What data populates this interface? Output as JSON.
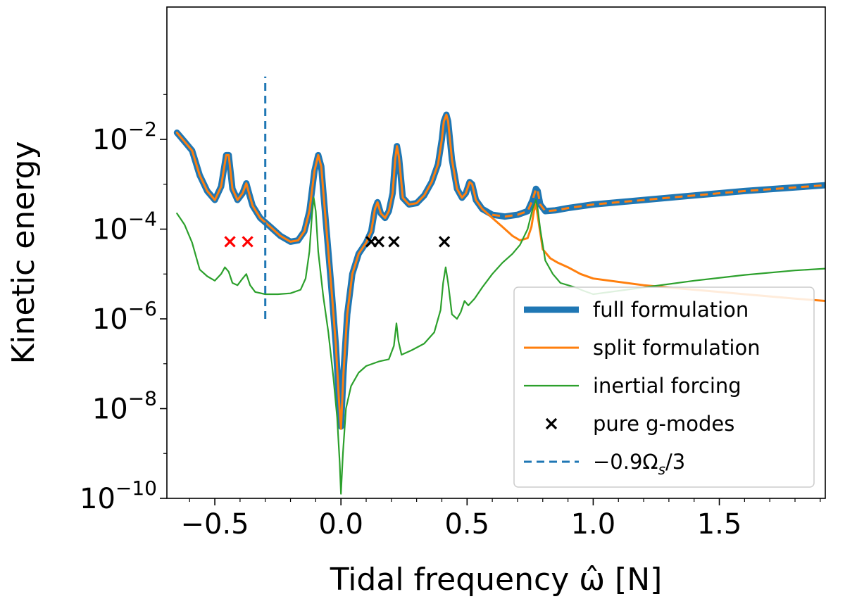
{
  "chart_data": {
    "type": "line",
    "xlabel": "Tidal frequency ω̂ [N]",
    "ylabel": "Kinetic energy",
    "xscale": "linear",
    "yscale": "log",
    "xlim": [
      -0.69,
      1.92
    ],
    "ylim_log10": [
      -10,
      0.95
    ],
    "x_ticks": [
      {
        "value": -0.5,
        "label": "−0.5"
      },
      {
        "value": 0.0,
        "label": "0.0"
      },
      {
        "value": 0.5,
        "label": "0.5"
      },
      {
        "value": 1.0,
        "label": "1.0"
      },
      {
        "value": 1.5,
        "label": "1.5"
      }
    ],
    "y_ticks": [
      {
        "exp": -2,
        "base": "10",
        "power": "−2"
      },
      {
        "exp": -4,
        "base": "10",
        "power": "−4"
      },
      {
        "exp": -6,
        "base": "10",
        "power": "−6"
      },
      {
        "exp": -8,
        "base": "10",
        "power": "−8"
      },
      {
        "exp": -10,
        "base": "10",
        "power": "−10"
      }
    ],
    "legend_position": "lower-right",
    "legend": [
      {
        "label": "full formulation",
        "key": "full"
      },
      {
        "label": "split formulation",
        "key": "split"
      },
      {
        "label": "inertial forcing",
        "key": "inertial"
      },
      {
        "label": "pure g-modes",
        "key": "gmodes"
      },
      {
        "label": "−0.9Ω",
        "sub": "s",
        "suffix": "/3",
        "key": "vline"
      }
    ],
    "series": [
      {
        "name": "full formulation",
        "key": "full",
        "color": "#1f77b4",
        "points_log10": [
          [
            -0.65,
            -1.85
          ],
          [
            -0.62,
            -2.05
          ],
          [
            -0.59,
            -2.25
          ],
          [
            -0.56,
            -2.8
          ],
          [
            -0.53,
            -3.15
          ],
          [
            -0.5,
            -3.35
          ],
          [
            -0.475,
            -3.05
          ],
          [
            -0.455,
            -2.35
          ],
          [
            -0.445,
            -2.35
          ],
          [
            -0.43,
            -3.1
          ],
          [
            -0.41,
            -3.35
          ],
          [
            -0.39,
            -3.2
          ],
          [
            -0.375,
            -2.98
          ],
          [
            -0.362,
            -3.25
          ],
          [
            -0.35,
            -3.48
          ],
          [
            -0.32,
            -3.75
          ],
          [
            -0.28,
            -3.95
          ],
          [
            -0.24,
            -4.15
          ],
          [
            -0.2,
            -4.28
          ],
          [
            -0.17,
            -4.25
          ],
          [
            -0.145,
            -4.05
          ],
          [
            -0.125,
            -3.6
          ],
          [
            -0.105,
            -2.7
          ],
          [
            -0.09,
            -2.35
          ],
          [
            -0.078,
            -2.6
          ],
          [
            -0.065,
            -3.5
          ],
          [
            -0.05,
            -4.5
          ],
          [
            -0.035,
            -5.5
          ],
          [
            -0.02,
            -6.6
          ],
          [
            -0.008,
            -7.8
          ],
          [
            0.0,
            -8.4
          ],
          [
            0.01,
            -7.2
          ],
          [
            0.025,
            -5.9
          ],
          [
            0.045,
            -5.0
          ],
          [
            0.07,
            -4.55
          ],
          [
            0.1,
            -4.3
          ],
          [
            0.12,
            -4.05
          ],
          [
            0.135,
            -3.55
          ],
          [
            0.145,
            -3.4
          ],
          [
            0.158,
            -3.65
          ],
          [
            0.175,
            -3.75
          ],
          [
            0.19,
            -3.6
          ],
          [
            0.205,
            -3.2
          ],
          [
            0.215,
            -2.45
          ],
          [
            0.222,
            -2.15
          ],
          [
            0.23,
            -2.4
          ],
          [
            0.245,
            -3.3
          ],
          [
            0.27,
            -3.45
          ],
          [
            0.3,
            -3.42
          ],
          [
            0.33,
            -3.25
          ],
          [
            0.36,
            -2.95
          ],
          [
            0.385,
            -2.55
          ],
          [
            0.4,
            -2.0
          ],
          [
            0.408,
            -1.6
          ],
          [
            0.418,
            -1.45
          ],
          [
            0.425,
            -1.6
          ],
          [
            0.44,
            -2.45
          ],
          [
            0.46,
            -3.1
          ],
          [
            0.48,
            -3.3
          ],
          [
            0.495,
            -3.2
          ],
          [
            0.51,
            -2.95
          ],
          [
            0.52,
            -3.0
          ],
          [
            0.535,
            -3.35
          ],
          [
            0.56,
            -3.55
          ],
          [
            0.6,
            -3.68
          ],
          [
            0.65,
            -3.72
          ],
          [
            0.7,
            -3.68
          ],
          [
            0.74,
            -3.6
          ],
          [
            0.76,
            -3.35
          ],
          [
            0.773,
            -3.1
          ],
          [
            0.78,
            -3.15
          ],
          [
            0.79,
            -3.45
          ],
          [
            0.81,
            -3.6
          ],
          [
            0.85,
            -3.58
          ],
          [
            0.9,
            -3.53
          ],
          [
            1.0,
            -3.45
          ],
          [
            1.2,
            -3.35
          ],
          [
            1.4,
            -3.25
          ],
          [
            1.6,
            -3.15
          ],
          [
            1.8,
            -3.07
          ],
          [
            1.92,
            -3.02
          ]
        ]
      },
      {
        "name": "split formulation",
        "key": "split",
        "color": "#ff7f0e",
        "points_log10": [
          [
            -0.65,
            -1.85
          ],
          [
            -0.62,
            -2.05
          ],
          [
            -0.59,
            -2.25
          ],
          [
            -0.56,
            -2.8
          ],
          [
            -0.53,
            -3.15
          ],
          [
            -0.5,
            -3.35
          ],
          [
            -0.475,
            -3.05
          ],
          [
            -0.455,
            -2.35
          ],
          [
            -0.445,
            -2.35
          ],
          [
            -0.43,
            -3.1
          ],
          [
            -0.41,
            -3.35
          ],
          [
            -0.39,
            -3.2
          ],
          [
            -0.375,
            -2.98
          ],
          [
            -0.362,
            -3.25
          ],
          [
            -0.35,
            -3.48
          ],
          [
            -0.32,
            -3.75
          ],
          [
            -0.28,
            -3.95
          ],
          [
            -0.24,
            -4.15
          ],
          [
            -0.2,
            -4.28
          ],
          [
            -0.17,
            -4.25
          ],
          [
            -0.145,
            -4.05
          ],
          [
            -0.125,
            -3.6
          ],
          [
            -0.105,
            -2.7
          ],
          [
            -0.09,
            -2.35
          ],
          [
            -0.078,
            -2.6
          ],
          [
            -0.065,
            -3.5
          ],
          [
            -0.05,
            -4.5
          ],
          [
            -0.035,
            -5.5
          ],
          [
            -0.02,
            -6.6
          ],
          [
            -0.008,
            -7.8
          ],
          [
            0.0,
            -8.45
          ],
          [
            0.01,
            -7.2
          ],
          [
            0.025,
            -5.9
          ],
          [
            0.045,
            -5.0
          ],
          [
            0.07,
            -4.55
          ],
          [
            0.1,
            -4.3
          ],
          [
            0.12,
            -4.05
          ],
          [
            0.135,
            -3.55
          ],
          [
            0.145,
            -3.4
          ],
          [
            0.158,
            -3.65
          ],
          [
            0.175,
            -3.75
          ],
          [
            0.19,
            -3.6
          ],
          [
            0.205,
            -3.2
          ],
          [
            0.215,
            -2.45
          ],
          [
            0.222,
            -2.15
          ],
          [
            0.23,
            -2.4
          ],
          [
            0.245,
            -3.3
          ],
          [
            0.27,
            -3.45
          ],
          [
            0.3,
            -3.42
          ],
          [
            0.33,
            -3.25
          ],
          [
            0.36,
            -2.95
          ],
          [
            0.385,
            -2.55
          ],
          [
            0.4,
            -2.0
          ],
          [
            0.408,
            -1.6
          ],
          [
            0.418,
            -1.45
          ],
          [
            0.425,
            -1.6
          ],
          [
            0.44,
            -2.45
          ],
          [
            0.46,
            -3.1
          ],
          [
            0.48,
            -3.3
          ],
          [
            0.495,
            -3.2
          ],
          [
            0.51,
            -2.95
          ],
          [
            0.52,
            -3.0
          ],
          [
            0.535,
            -3.35
          ],
          [
            0.56,
            -3.55
          ],
          [
            0.6,
            -3.75
          ],
          [
            0.64,
            -3.95
          ],
          [
            0.68,
            -4.15
          ],
          [
            0.71,
            -4.25
          ],
          [
            0.74,
            -4.2
          ],
          [
            0.755,
            -3.95
          ],
          [
            0.765,
            -3.6
          ],
          [
            0.773,
            -3.45
          ],
          [
            0.78,
            -3.7
          ],
          [
            0.8,
            -4.45
          ],
          [
            0.83,
            -4.65
          ],
          [
            0.86,
            -4.75
          ],
          [
            0.9,
            -4.85
          ],
          [
            0.95,
            -5.0
          ],
          [
            1.0,
            -5.1
          ],
          [
            1.2,
            -5.25
          ],
          [
            1.4,
            -5.35
          ],
          [
            1.6,
            -5.45
          ],
          [
            1.8,
            -5.55
          ],
          [
            1.92,
            -5.6
          ]
        ]
      },
      {
        "name": "inertial forcing",
        "key": "inertial",
        "color": "#2ca02c",
        "points_log10": [
          [
            -0.65,
            -3.65
          ],
          [
            -0.62,
            -3.9
          ],
          [
            -0.59,
            -4.3
          ],
          [
            -0.56,
            -4.9
          ],
          [
            -0.53,
            -5.05
          ],
          [
            -0.5,
            -5.15
          ],
          [
            -0.475,
            -5.0
          ],
          [
            -0.46,
            -4.85
          ],
          [
            -0.445,
            -4.95
          ],
          [
            -0.43,
            -5.2
          ],
          [
            -0.41,
            -5.25
          ],
          [
            -0.39,
            -5.1
          ],
          [
            -0.375,
            -5.0
          ],
          [
            -0.36,
            -5.25
          ],
          [
            -0.34,
            -5.4
          ],
          [
            -0.3,
            -5.45
          ],
          [
            -0.25,
            -5.45
          ],
          [
            -0.2,
            -5.43
          ],
          [
            -0.16,
            -5.35
          ],
          [
            -0.14,
            -5.1
          ],
          [
            -0.125,
            -4.5
          ],
          [
            -0.115,
            -3.7
          ],
          [
            -0.108,
            -3.3
          ],
          [
            -0.1,
            -3.6
          ],
          [
            -0.09,
            -4.5
          ],
          [
            -0.07,
            -5.5
          ],
          [
            -0.05,
            -6.3
          ],
          [
            -0.03,
            -7.3
          ],
          [
            -0.015,
            -8.2
          ],
          [
            -0.005,
            -9.2
          ],
          [
            0.0,
            -9.9
          ],
          [
            0.008,
            -9.0
          ],
          [
            0.02,
            -8.0
          ],
          [
            0.04,
            -7.5
          ],
          [
            0.07,
            -7.2
          ],
          [
            0.1,
            -7.05
          ],
          [
            0.15,
            -6.95
          ],
          [
            0.19,
            -6.9
          ],
          [
            0.21,
            -6.6
          ],
          [
            0.22,
            -6.1
          ],
          [
            0.228,
            -6.5
          ],
          [
            0.24,
            -6.8
          ],
          [
            0.28,
            -6.7
          ],
          [
            0.33,
            -6.55
          ],
          [
            0.37,
            -6.3
          ],
          [
            0.395,
            -5.8
          ],
          [
            0.405,
            -5.2
          ],
          [
            0.415,
            -4.85
          ],
          [
            0.425,
            -5.2
          ],
          [
            0.44,
            -5.9
          ],
          [
            0.46,
            -6.0
          ],
          [
            0.475,
            -5.85
          ],
          [
            0.49,
            -5.6
          ],
          [
            0.505,
            -5.7
          ],
          [
            0.53,
            -5.55
          ],
          [
            0.56,
            -5.3
          ],
          [
            0.6,
            -5.0
          ],
          [
            0.64,
            -4.75
          ],
          [
            0.68,
            -4.55
          ],
          [
            0.71,
            -4.35
          ],
          [
            0.74,
            -4.0
          ],
          [
            0.76,
            -3.55
          ],
          [
            0.773,
            -3.35
          ],
          [
            0.78,
            -3.55
          ],
          [
            0.79,
            -4.0
          ],
          [
            0.81,
            -4.7
          ],
          [
            0.84,
            -5.0
          ],
          [
            0.87,
            -5.2
          ],
          [
            0.9,
            -5.25
          ],
          [
            0.93,
            -5.3
          ],
          [
            0.96,
            -5.37
          ],
          [
            1.0,
            -5.45
          ],
          [
            1.2,
            -5.3
          ],
          [
            1.4,
            -5.15
          ],
          [
            1.6,
            -5.02
          ],
          [
            1.8,
            -4.92
          ],
          [
            1.92,
            -4.88
          ]
        ]
      }
    ],
    "gmode_markers": [
      {
        "x": -0.44,
        "log10_y": -4.28,
        "color": "#ff0000"
      },
      {
        "x": -0.37,
        "log10_y": -4.28,
        "color": "#ff0000"
      },
      {
        "x": 0.12,
        "log10_y": -4.28,
        "color": "#000000"
      },
      {
        "x": 0.15,
        "log10_y": -4.28,
        "color": "#000000"
      },
      {
        "x": 0.21,
        "log10_y": -4.28,
        "color": "#000000"
      },
      {
        "x": 0.41,
        "log10_y": -4.28,
        "color": "#000000"
      }
    ],
    "vline": {
      "x": -0.3,
      "log10_ymin": -6.0,
      "log10_ymax": -0.6,
      "color": "#1f77b4"
    }
  }
}
